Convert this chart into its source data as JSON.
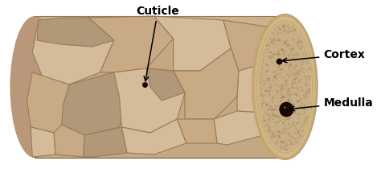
{
  "bg_color": "#ffffff",
  "body_color": "#c4a882",
  "body_top_color": "#d4bc98",
  "body_bottom_color": "#b09070",
  "left_cap_color": "#b8977a",
  "scale_base_color": "#c8aa84",
  "scale_light": "#d4bc9a",
  "scale_dark": "#b09878",
  "scale_edge_color": "#9a7a5a",
  "ellipse_outer_color": "#d4bc96",
  "ellipse_ring_color": "#c8aa78",
  "ellipse_inner_color": "#c8ae84",
  "cortex_dot_color": "#1a0800",
  "medulla_fill": "#1a0800",
  "medulla_edge": "#000000",
  "label_cuticle": "Cuticle",
  "label_cortex": "Cortex",
  "label_medulla": "Medulla",
  "font_size": 10,
  "font_weight": "bold"
}
